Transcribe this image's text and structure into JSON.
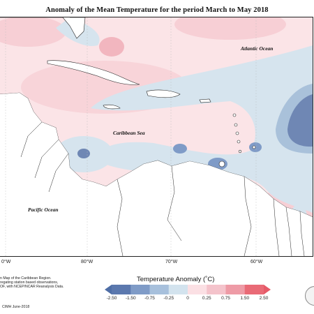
{
  "title": "Anomaly of the Mean Temperature for the period March to May 2018",
  "labels": {
    "atlantic": "Atlantic Ocean",
    "caribbean": "Caribbean Sea",
    "pacific": "Pacific Ocean"
  },
  "longitude_ticks": [
    "0°W",
    "80°W",
    "70°W",
    "60°W"
  ],
  "footer": {
    "line1": "n Map of the Caribbean Region.",
    "line2": "regating station based observations,",
    "line3": "OF, with NCEP/NCAR Reanalysis Data.",
    "credit": "CIMH June-2018"
  },
  "legend": {
    "title": "Temperature Anomaly (˚C)",
    "ticks": [
      "-2.50",
      "-1.50",
      "-0.75",
      "-0.25",
      "0",
      "0.25",
      "0.75",
      "1.50",
      "2.50"
    ],
    "colors": [
      "#5b78ae",
      "#7f9bc7",
      "#a7c0dc",
      "#d3e3ee",
      "#fbe0e4",
      "#f4c3cb",
      "#ee9ba6",
      "#e96a76"
    ]
  },
  "colors": {
    "cool": "#d6e4ee",
    "cool_mid": "#a9c1da",
    "cool_strong": "#6f87b4",
    "warm": "#fbe1e4",
    "warm_mid": "#f6c7cd",
    "land": "#ffffff"
  }
}
